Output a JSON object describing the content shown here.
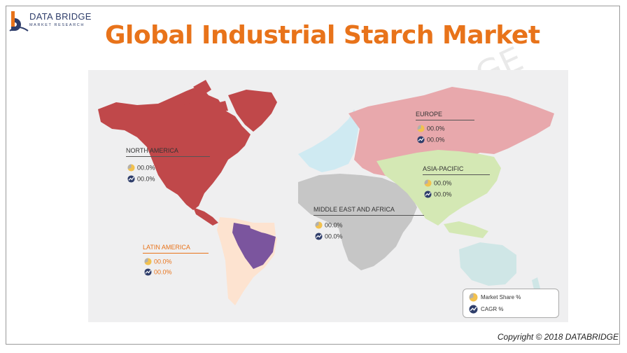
{
  "brand": {
    "name": "DATA BRIDGE",
    "tagline": "MARKET RESEARCH",
    "logo_icon": "data-bridge-logo-icon"
  },
  "title": "Global Industrial Starch Market",
  "watermark": "GE",
  "colors": {
    "title": "#e8731a",
    "north_america": "#c0484a",
    "latin_america_light": "#fde3d0",
    "brazil": "#7b559e",
    "europe": "#e8a8ac",
    "asia_pacific": "#d4e8b4",
    "middle_east_africa": "#c6c6c6",
    "western_europe": "#cfeaf2",
    "oceania": "#cfe6e6"
  },
  "regions": [
    {
      "id": "north-america",
      "name": "NORTH AMERICA",
      "market_share": "00.0%",
      "cagr": "00.0%"
    },
    {
      "id": "europe",
      "name": "EUROPE",
      "market_share": "00.0%",
      "cagr": "00.0%"
    },
    {
      "id": "asia-pacific",
      "name": "ASIA-PACIFIC",
      "market_share": "00.0%",
      "cagr": "00.0%"
    },
    {
      "id": "middle-east-africa",
      "name": "MIDDLE EAST AND AFRICA",
      "market_share": "00.0%",
      "cagr": "00.0%"
    },
    {
      "id": "latin-america",
      "name": "LATIN AMERICA",
      "market_share": "00.0%",
      "cagr": "00.0%"
    }
  ],
  "legend": {
    "market_share": "Market Share  %",
    "cagr": "CAGR %",
    "market_share_icon": "pie-chart-icon",
    "cagr_icon": "trend-gauge-icon"
  },
  "copyright": "Copyright © 2018 DATABRIDGE"
}
